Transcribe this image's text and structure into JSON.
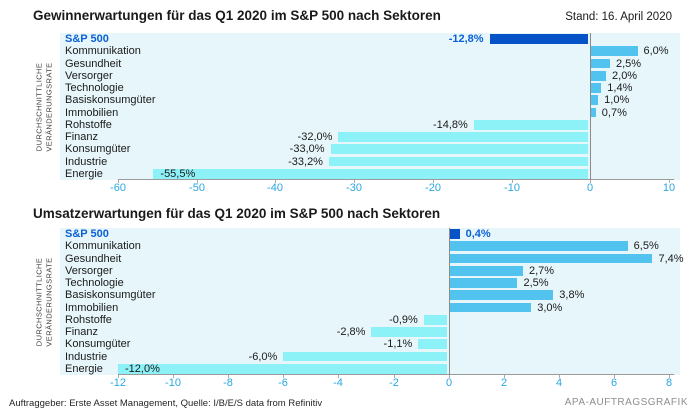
{
  "header": {
    "stand": "Stand: 16. April 2020"
  },
  "chart_data": [
    {
      "type": "bar",
      "orientation": "horizontal",
      "title": "Gewinnerwartungen für das Q1 2020 im S&P 500 nach Sektoren",
      "ylabel": "DURCHSCHNITTLICHE\nVERÄNDERUNGSRATE",
      "xlabel": "",
      "categories": [
        "S&P 500",
        "Kommunikation",
        "Gesundheit",
        "Versorger",
        "Technologie",
        "Basiskonsumgüter",
        "Immobilien",
        "Rohstoffe",
        "Finanz",
        "Konsumgüter",
        "Industrie",
        "Energie"
      ],
      "values": [
        -12.8,
        6.0,
        2.5,
        2.0,
        1.4,
        1.0,
        0.7,
        -14.8,
        -32.0,
        -33.0,
        -33.2,
        -55.5
      ],
      "value_labels": [
        "-12,8%",
        "6,0%",
        "2,5%",
        "2,0%",
        "1,4%",
        "1,0%",
        "0,7%",
        "-14,8%",
        "-32,0%",
        "-33,0%",
        "-33,2%",
        "-55,5%"
      ],
      "highlight_category": "S&P 500",
      "xlim": [
        -60,
        10
      ],
      "xticks": [
        -60,
        -50,
        -40,
        -30,
        -20,
        -10,
        0,
        10
      ],
      "xtick_labels": [
        "-60",
        "-50",
        "-40",
        "-30",
        "-20",
        "-10",
        "0",
        "10"
      ],
      "labels_inside_bar": [
        "Energie"
      ],
      "grid": false,
      "legend": false
    },
    {
      "type": "bar",
      "orientation": "horizontal",
      "title": "Umsatzerwartungen für das Q1 2020 im S&P 500 nach Sektoren",
      "ylabel": "DURCHSCHNITTLICHE\nVERÄNDERUNGSRATE",
      "xlabel": "",
      "categories": [
        "S&P 500",
        "Kommunikation",
        "Gesundheit",
        "Versorger",
        "Technologie",
        "Basiskonsumgüter",
        "Immobilien",
        "Rohstoffe",
        "Finanz",
        "Konsumgüter",
        "Industrie",
        "Energie"
      ],
      "values": [
        0.4,
        6.5,
        7.4,
        2.7,
        2.5,
        3.8,
        3.0,
        -0.9,
        -2.8,
        -1.1,
        -6.0,
        -12.0
      ],
      "value_labels": [
        "0,4%",
        "6,5%",
        "7,4%",
        "2,7%",
        "2,5%",
        "3,8%",
        "3,0%",
        "-0,9%",
        "-2,8%",
        "-1,1%",
        "-6,0%",
        "-12,0%"
      ],
      "highlight_category": "S&P 500",
      "xlim": [
        -12,
        8
      ],
      "xticks": [
        -12,
        -10,
        -8,
        -6,
        -4,
        -2,
        0,
        2,
        4,
        6,
        8
      ],
      "xtick_labels": [
        "-12",
        "-10",
        "-8",
        "-6",
        "-4",
        "-2",
        "0",
        "2",
        "4",
        "6",
        "8"
      ],
      "labels_inside_bar": [
        "Energie"
      ],
      "grid": false,
      "legend": false
    }
  ],
  "colors": {
    "highlight_bar": "#0553c6",
    "highlight_text": "#0a60d6",
    "positive_bar": "#52c3ee",
    "negative_bar": "#8df1f8",
    "plot_background": "#e7f6fb",
    "tick_text": "#2aa7e0"
  },
  "footer": {
    "left": "Auftraggeber: Erste Asset Management, Quelle: I/B/E/S data from Refinitiv",
    "right": "APA-AUFTRAGSGRAFIK"
  }
}
